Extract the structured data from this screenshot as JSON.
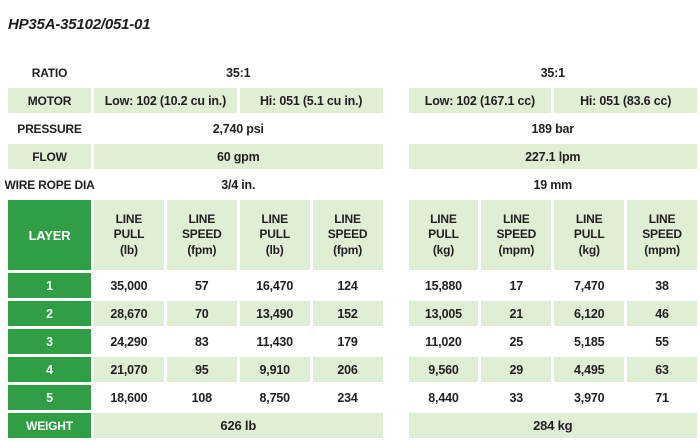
{
  "title": "HP35A-35102/051-01",
  "colors": {
    "dark_green": "#2f9e44",
    "light_green": "#dfeed5",
    "text": "#231f20",
    "background": "#ffffff"
  },
  "specs": [
    {
      "label": "RATIO",
      "imperial": "35:1",
      "metric": "35:1"
    },
    {
      "label": "MOTOR",
      "imperial_low": "Low: 102 (10.2 cu in.)",
      "imperial_hi": "Hi: 051 (5.1 cu in.)",
      "metric_low": "Low: 102 (167.1 cc)",
      "metric_hi": "Hi: 051 (83.6 cc)"
    },
    {
      "label": "PRESSURE",
      "imperial": "2,740 psi",
      "metric": "189 bar"
    },
    {
      "label": "FLOW",
      "imperial": "60 gpm",
      "metric": "227.1 lpm"
    },
    {
      "label": "WIRE ROPE DIA",
      "imperial": "3/4 in.",
      "metric": "19 mm"
    }
  ],
  "table": {
    "layer_header": "LAYER",
    "columns": [
      "LINE\nPULL\n(lb)",
      "LINE\nSPEED\n(fpm)",
      "LINE\nPULL\n(lb)",
      "LINE\nSPEED\n(fpm)",
      "LINE\nPULL\n(kg)",
      "LINE\nSPEED\n(mpm)",
      "LINE\nPULL\n(kg)",
      "LINE\nSPEED\n(mpm)"
    ],
    "rows": [
      {
        "layer": "1",
        "values": [
          "35,000",
          "57",
          "16,470",
          "124",
          "15,880",
          "17",
          "7,470",
          "38"
        ]
      },
      {
        "layer": "2",
        "values": [
          "28,670",
          "70",
          "13,490",
          "152",
          "13,005",
          "21",
          "6,120",
          "46"
        ]
      },
      {
        "layer": "3",
        "values": [
          "24,290",
          "83",
          "11,430",
          "179",
          "11,020",
          "25",
          "5,185",
          "55"
        ]
      },
      {
        "layer": "4",
        "values": [
          "21,070",
          "95",
          "9,910",
          "206",
          "9,560",
          "29",
          "4,495",
          "63"
        ]
      },
      {
        "layer": "5",
        "values": [
          "18,600",
          "108",
          "8,750",
          "234",
          "8,440",
          "33",
          "3,970",
          "71"
        ]
      }
    ],
    "weight": {
      "label": "WEIGHT",
      "imperial": "626 lb",
      "metric": "284 kg"
    }
  }
}
